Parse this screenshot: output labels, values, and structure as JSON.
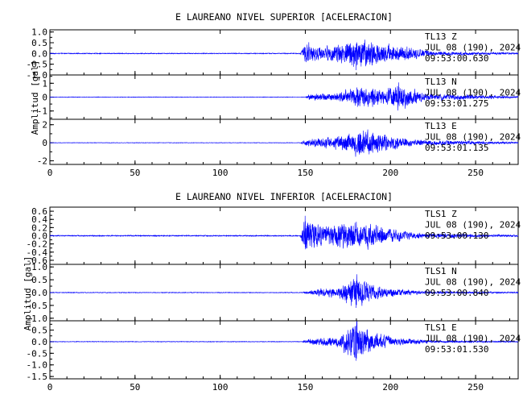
{
  "chart_data": [
    {
      "type": "line",
      "title": "E LAUREANO NIVEL SUPERIOR [ACELERACION]",
      "ylabel": "Amplitud [gal]",
      "xlabel": "",
      "xlim": [
        0,
        275
      ],
      "x_ticks": [
        0,
        50,
        100,
        150,
        200,
        250
      ],
      "x_tick_labels": [
        "0",
        "50",
        "100",
        "150",
        "200",
        "250"
      ],
      "line_color": "#0000ff",
      "traces": [
        {
          "station": "TL13",
          "component": "Z",
          "date": "JUL 08 (190), 2024",
          "time": "09:53:00.630",
          "ylim": [
            -1.0,
            1.1
          ],
          "y_ticks": [
            1.0,
            0.5,
            0.0,
            -0.5,
            -1.0
          ],
          "y_tick_labels": [
            "1.0",
            "0.5",
            "0.0",
            "-0.5",
            "-1.0"
          ],
          "onset": 148,
          "peak_time": 180,
          "peak_amplitude": 1.1,
          "envelope": [
            [
              0,
              0.03
            ],
            [
              147,
              0.03
            ],
            [
              149,
              0.55
            ],
            [
              151,
              0.75
            ],
            [
              160,
              0.4
            ],
            [
              180,
              1.05
            ],
            [
              205,
              0.55
            ],
            [
              225,
              0.15
            ],
            [
              275,
              0.05
            ]
          ]
        },
        {
          "station": "TL13",
          "component": "N",
          "date": "JUL 08 (190), 2024",
          "time": "09:53:01.275",
          "ylim": [
            -1.6,
            1.6
          ],
          "y_ticks": [
            1,
            0,
            -1
          ],
          "y_tick_labels": [
            "1",
            "0",
            "-1"
          ],
          "onset": 150,
          "peak_time": 205,
          "peak_amplitude": 1.4,
          "envelope": [
            [
              0,
              0.03
            ],
            [
              150,
              0.03
            ],
            [
              152,
              0.35
            ],
            [
              170,
              0.45
            ],
            [
              182,
              1.2
            ],
            [
              195,
              0.8
            ],
            [
              205,
              1.35
            ],
            [
              220,
              0.4
            ],
            [
              275,
              0.08
            ]
          ]
        },
        {
          "station": "TL13",
          "component": "E",
          "date": "JUL 08 (190), 2024",
          "time": "09:53:01.135",
          "ylim": [
            -2.4,
            2.6
          ],
          "y_ticks": [
            2,
            0,
            -2
          ],
          "y_tick_labels": [
            "2",
            "0",
            "-2"
          ],
          "onset": 147,
          "peak_time": 182,
          "peak_amplitude": 2.2,
          "envelope": [
            [
              0,
              0.04
            ],
            [
              147,
              0.04
            ],
            [
              150,
              0.55
            ],
            [
              165,
              0.9
            ],
            [
              182,
              2.1
            ],
            [
              200,
              1.2
            ],
            [
              215,
              0.5
            ],
            [
              275,
              0.12
            ]
          ]
        }
      ]
    },
    {
      "type": "line",
      "title": "E LAUREANO NIVEL INFERIOR [ACELERACION]",
      "ylabel": "Amplitud [gal]",
      "xlabel": "",
      "xlim": [
        0,
        275
      ],
      "x_ticks": [
        0,
        50,
        100,
        150,
        200,
        250
      ],
      "x_tick_labels": [
        "0",
        "50",
        "100",
        "150",
        "200",
        "250"
      ],
      "line_color": "#0000ff",
      "traces": [
        {
          "station": "TLS1",
          "component": "Z",
          "date": "JUL 08 (190), 2024",
          "time": "09:53:00.130",
          "ylim": [
            -0.7,
            0.7
          ],
          "y_ticks": [
            0.6,
            0.4,
            0.2,
            0.0,
            -0.2,
            -0.4,
            -0.6
          ],
          "y_tick_labels": [
            "0.6",
            "0.4",
            "0.2",
            "0.0",
            "-0.2",
            "-0.4",
            "-0.6"
          ],
          "onset": 148,
          "peak_time": 150,
          "peak_amplitude": 0.7,
          "envelope": [
            [
              0,
              0.02
            ],
            [
              147,
              0.02
            ],
            [
              149,
              0.45
            ],
            [
              151,
              0.65
            ],
            [
              160,
              0.35
            ],
            [
              178,
              0.5
            ],
            [
              195,
              0.3
            ],
            [
              215,
              0.1
            ],
            [
              275,
              0.03
            ]
          ]
        },
        {
          "station": "TLS1",
          "component": "N",
          "date": "JUL 08 (190), 2024",
          "time": "09:53:00.840",
          "ylim": [
            -1.1,
            1.1
          ],
          "y_ticks": [
            1.0,
            0.5,
            0.0,
            -0.5,
            -1.0
          ],
          "y_tick_labels": [
            "1.0",
            "0.5",
            "0.0",
            "-0.5",
            "-1.0"
          ],
          "onset": 148,
          "peak_time": 180,
          "peak_amplitude": 1.0,
          "envelope": [
            [
              0,
              0.02
            ],
            [
              148,
              0.02
            ],
            [
              152,
              0.12
            ],
            [
              170,
              0.3
            ],
            [
              180,
              1.0
            ],
            [
              188,
              0.5
            ],
            [
              200,
              0.25
            ],
            [
              220,
              0.08
            ],
            [
              275,
              0.03
            ]
          ]
        },
        {
          "station": "TLS1",
          "component": "E",
          "date": "JUL 08 (190), 2024",
          "time": "09:53:01.530",
          "ylim": [
            -1.6,
            0.9
          ],
          "y_ticks": [
            0.5,
            0.0,
            -0.5,
            -1.0,
            -1.5
          ],
          "y_tick_labels": [
            "0.5",
            "0.0",
            "-0.5",
            "-1.0",
            "-1.5"
          ],
          "onset": 148,
          "peak_time": 180,
          "peak_amplitude": 1.5,
          "envelope": [
            [
              0,
              0.02
            ],
            [
              148,
              0.02
            ],
            [
              152,
              0.18
            ],
            [
              170,
              0.35
            ],
            [
              180,
              1.4
            ],
            [
              188,
              0.6
            ],
            [
              205,
              0.25
            ],
            [
              225,
              0.08
            ],
            [
              275,
              0.03
            ]
          ]
        }
      ]
    }
  ]
}
